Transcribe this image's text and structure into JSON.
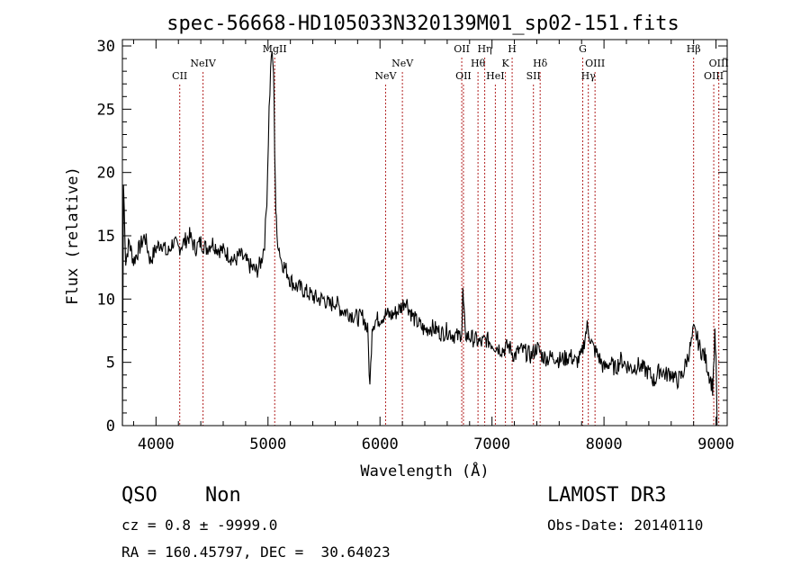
{
  "chart_data": {
    "type": "line",
    "title": "spec-56668-HD105033N320139M01_sp02-151.fits",
    "xlabel": "Wavelength (Å)",
    "ylabel": "Flux (relative)",
    "xlim": [
      3700,
      9100
    ],
    "ylim": [
      0,
      30.5
    ],
    "xticks": [
      4000,
      5000,
      6000,
      7000,
      8000,
      9000
    ],
    "yticks": [
      0,
      5,
      10,
      15,
      20,
      25,
      30
    ],
    "grid": false,
    "series": [
      {
        "name": "flux",
        "x": [
          3700,
          3710,
          3730,
          3760,
          3800,
          3850,
          3900,
          3950,
          4000,
          4050,
          4100,
          4150,
          4200,
          4250,
          4300,
          4350,
          4400,
          4450,
          4500,
          4550,
          4600,
          4650,
          4700,
          4750,
          4800,
          4850,
          4900,
          4940,
          4970,
          4990,
          5010,
          5030,
          5050,
          5060,
          5070,
          5080,
          5100,
          5120,
          5150,
          5180,
          5200,
          5250,
          5300,
          5350,
          5400,
          5450,
          5500,
          5550,
          5600,
          5650,
          5700,
          5750,
          5800,
          5850,
          5890,
          5910,
          5930,
          5960,
          6000,
          6050,
          6100,
          6150,
          6200,
          6230,
          6260,
          6300,
          6350,
          6400,
          6450,
          6500,
          6550,
          6600,
          6650,
          6700,
          6730,
          6740,
          6750,
          6760,
          6800,
          6850,
          6900,
          6950,
          7000,
          7050,
          7100,
          7150,
          7200,
          7250,
          7300,
          7350,
          7400,
          7450,
          7500,
          7550,
          7600,
          7650,
          7700,
          7750,
          7800,
          7830,
          7850,
          7870,
          7900,
          7950,
          8000,
          8050,
          8100,
          8150,
          8200,
          8250,
          8300,
          8350,
          8400,
          8450,
          8500,
          8550,
          8600,
          8650,
          8700,
          8750,
          8780,
          8800,
          8830,
          8860,
          8900,
          8940,
          8970,
          8990,
          9000,
          9010
        ],
        "y": [
          0,
          19,
          13,
          14.5,
          13,
          14,
          15,
          13,
          14,
          14.5,
          13.5,
          14.5,
          14,
          14.5,
          15,
          14,
          14.5,
          14,
          14.5,
          14,
          13.8,
          13.5,
          13,
          13.5,
          13,
          12.5,
          12.2,
          13,
          14.5,
          18,
          25,
          29.5,
          28,
          22,
          17,
          15,
          14,
          13,
          12.5,
          12,
          11.5,
          11,
          10.8,
          10.5,
          10.2,
          10,
          10,
          9.5,
          9.8,
          9.2,
          9,
          8.8,
          8.5,
          8.6,
          7.5,
          3,
          8,
          8.3,
          8.5,
          8.8,
          8.7,
          9,
          9.5,
          10,
          9.2,
          8.5,
          8,
          7.5,
          7.8,
          7.6,
          7.3,
          7.5,
          7.2,
          7,
          7.5,
          10.5,
          9,
          7.2,
          7,
          6.8,
          6.5,
          6.8,
          6.5,
          6.2,
          6,
          6.3,
          5.5,
          6,
          5.8,
          5.5,
          6.2,
          5.5,
          5.3,
          5.5,
          5.2,
          5.3,
          5.5,
          5,
          5.5,
          7,
          7.8,
          7.2,
          6.2,
          5.5,
          4.5,
          5,
          4.5,
          5.2,
          4.8,
          4.5,
          4.8,
          4.5,
          4.2,
          3.5,
          4.5,
          4,
          4.2,
          3.5,
          4,
          5.5,
          6.5,
          7.5,
          7,
          6,
          5.5,
          4,
          3,
          7,
          5.5,
          0
        ]
      }
    ],
    "lines": [
      {
        "label": "CII",
        "x": 4212
      },
      {
        "label": "NeIV",
        "x": 4420
      },
      {
        "label": "MgII",
        "x": 5060
      },
      {
        "label": "NeV",
        "x": 6050
      },
      {
        "label": "NeV",
        "x": 6200
      },
      {
        "label": "OII",
        "x": 6730
      },
      {
        "label": "OII",
        "x": 6745
      },
      {
        "label": "Hθ",
        "x": 6875
      },
      {
        "label": "Hη",
        "x": 6935
      },
      {
        "label": "HeI",
        "x": 7030
      },
      {
        "label": "K",
        "x": 7120
      },
      {
        "label": "H",
        "x": 7180
      },
      {
        "label": "SII",
        "x": 7370
      },
      {
        "label": "Hδ",
        "x": 7430
      },
      {
        "label": "G",
        "x": 7810
      },
      {
        "label": "Hγ",
        "x": 7860
      },
      {
        "label": "OIII",
        "x": 7920
      },
      {
        "label": "Hβ",
        "x": 8800
      },
      {
        "label": "OIII",
        "x": 8980
      },
      {
        "label": "OIII",
        "x": 9025
      }
    ]
  },
  "info": {
    "class_label": "QSO",
    "subclass": "Non",
    "survey": "LAMOST DR3",
    "cz": "cz = 0.8 ± -9999.0",
    "obs_date": "Obs-Date: 20140110",
    "coords": "RA = 160.45797, DEC =  30.64023"
  }
}
